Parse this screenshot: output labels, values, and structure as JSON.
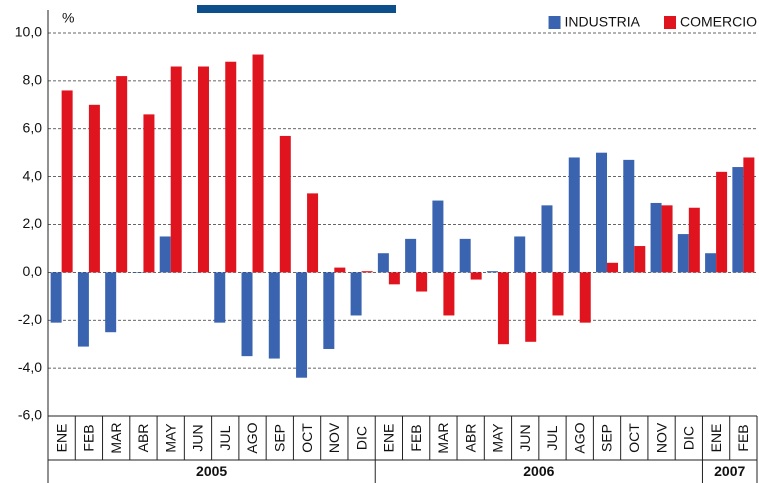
{
  "chart_data": {
    "type": "bar",
    "unit_label": "%",
    "groups": [
      {
        "label": "2005",
        "months": [
          "ENE",
          "FEB",
          "MAR",
          "ABR",
          "MAY",
          "JUN",
          "JUL",
          "AGO",
          "SEP",
          "OCT",
          "NOV",
          "DIC"
        ]
      },
      {
        "label": "2006",
        "months": [
          "ENE",
          "FEB",
          "MAR",
          "ABR",
          "MAY",
          "JUN",
          "JUL",
          "AGO",
          "SEP",
          "OCT",
          "NOV",
          "DIC"
        ]
      },
      {
        "label": "2007",
        "months": [
          "ENE",
          "FEB"
        ]
      }
    ],
    "series": [
      {
        "name": "INDUSTRIA",
        "color": "#3a63b0",
        "values": [
          -2.1,
          -3.1,
          -2.5,
          0,
          1.5,
          0,
          -2.1,
          -3.5,
          -3.6,
          -4.4,
          -3.2,
          -1.8,
          0.8,
          1.4,
          3.0,
          1.4,
          0.05,
          1.5,
          2.8,
          4.8,
          5.0,
          4.7,
          2.9,
          1.6,
          0.8,
          4.4
        ]
      },
      {
        "name": "COMERCIO",
        "color": "#e0141e",
        "values": [
          7.6,
          7.0,
          8.2,
          6.6,
          8.6,
          8.6,
          8.8,
          9.1,
          5.7,
          3.3,
          0.2,
          0.05,
          -0.5,
          -0.8,
          -1.8,
          -0.3,
          -3.0,
          -2.9,
          -1.8,
          -2.1,
          0.4,
          1.1,
          2.8,
          2.7,
          4.2,
          4.8
        ]
      }
    ],
    "ylim": [
      -6,
      10
    ],
    "yticks": [
      {
        "value": -6,
        "label": "-6,0"
      },
      {
        "value": -4,
        "label": "-4,0"
      },
      {
        "value": -2,
        "label": "-2,0"
      },
      {
        "value": 0,
        "label": "0,0"
      },
      {
        "value": 2,
        "label": "2,0"
      },
      {
        "value": 4,
        "label": "4,0"
      },
      {
        "value": 6,
        "label": "6,0"
      },
      {
        "value": 8,
        "label": "8,0"
      },
      {
        "value": 10,
        "label": "10,0"
      }
    ],
    "grid": true,
    "legend": "top-right"
  }
}
